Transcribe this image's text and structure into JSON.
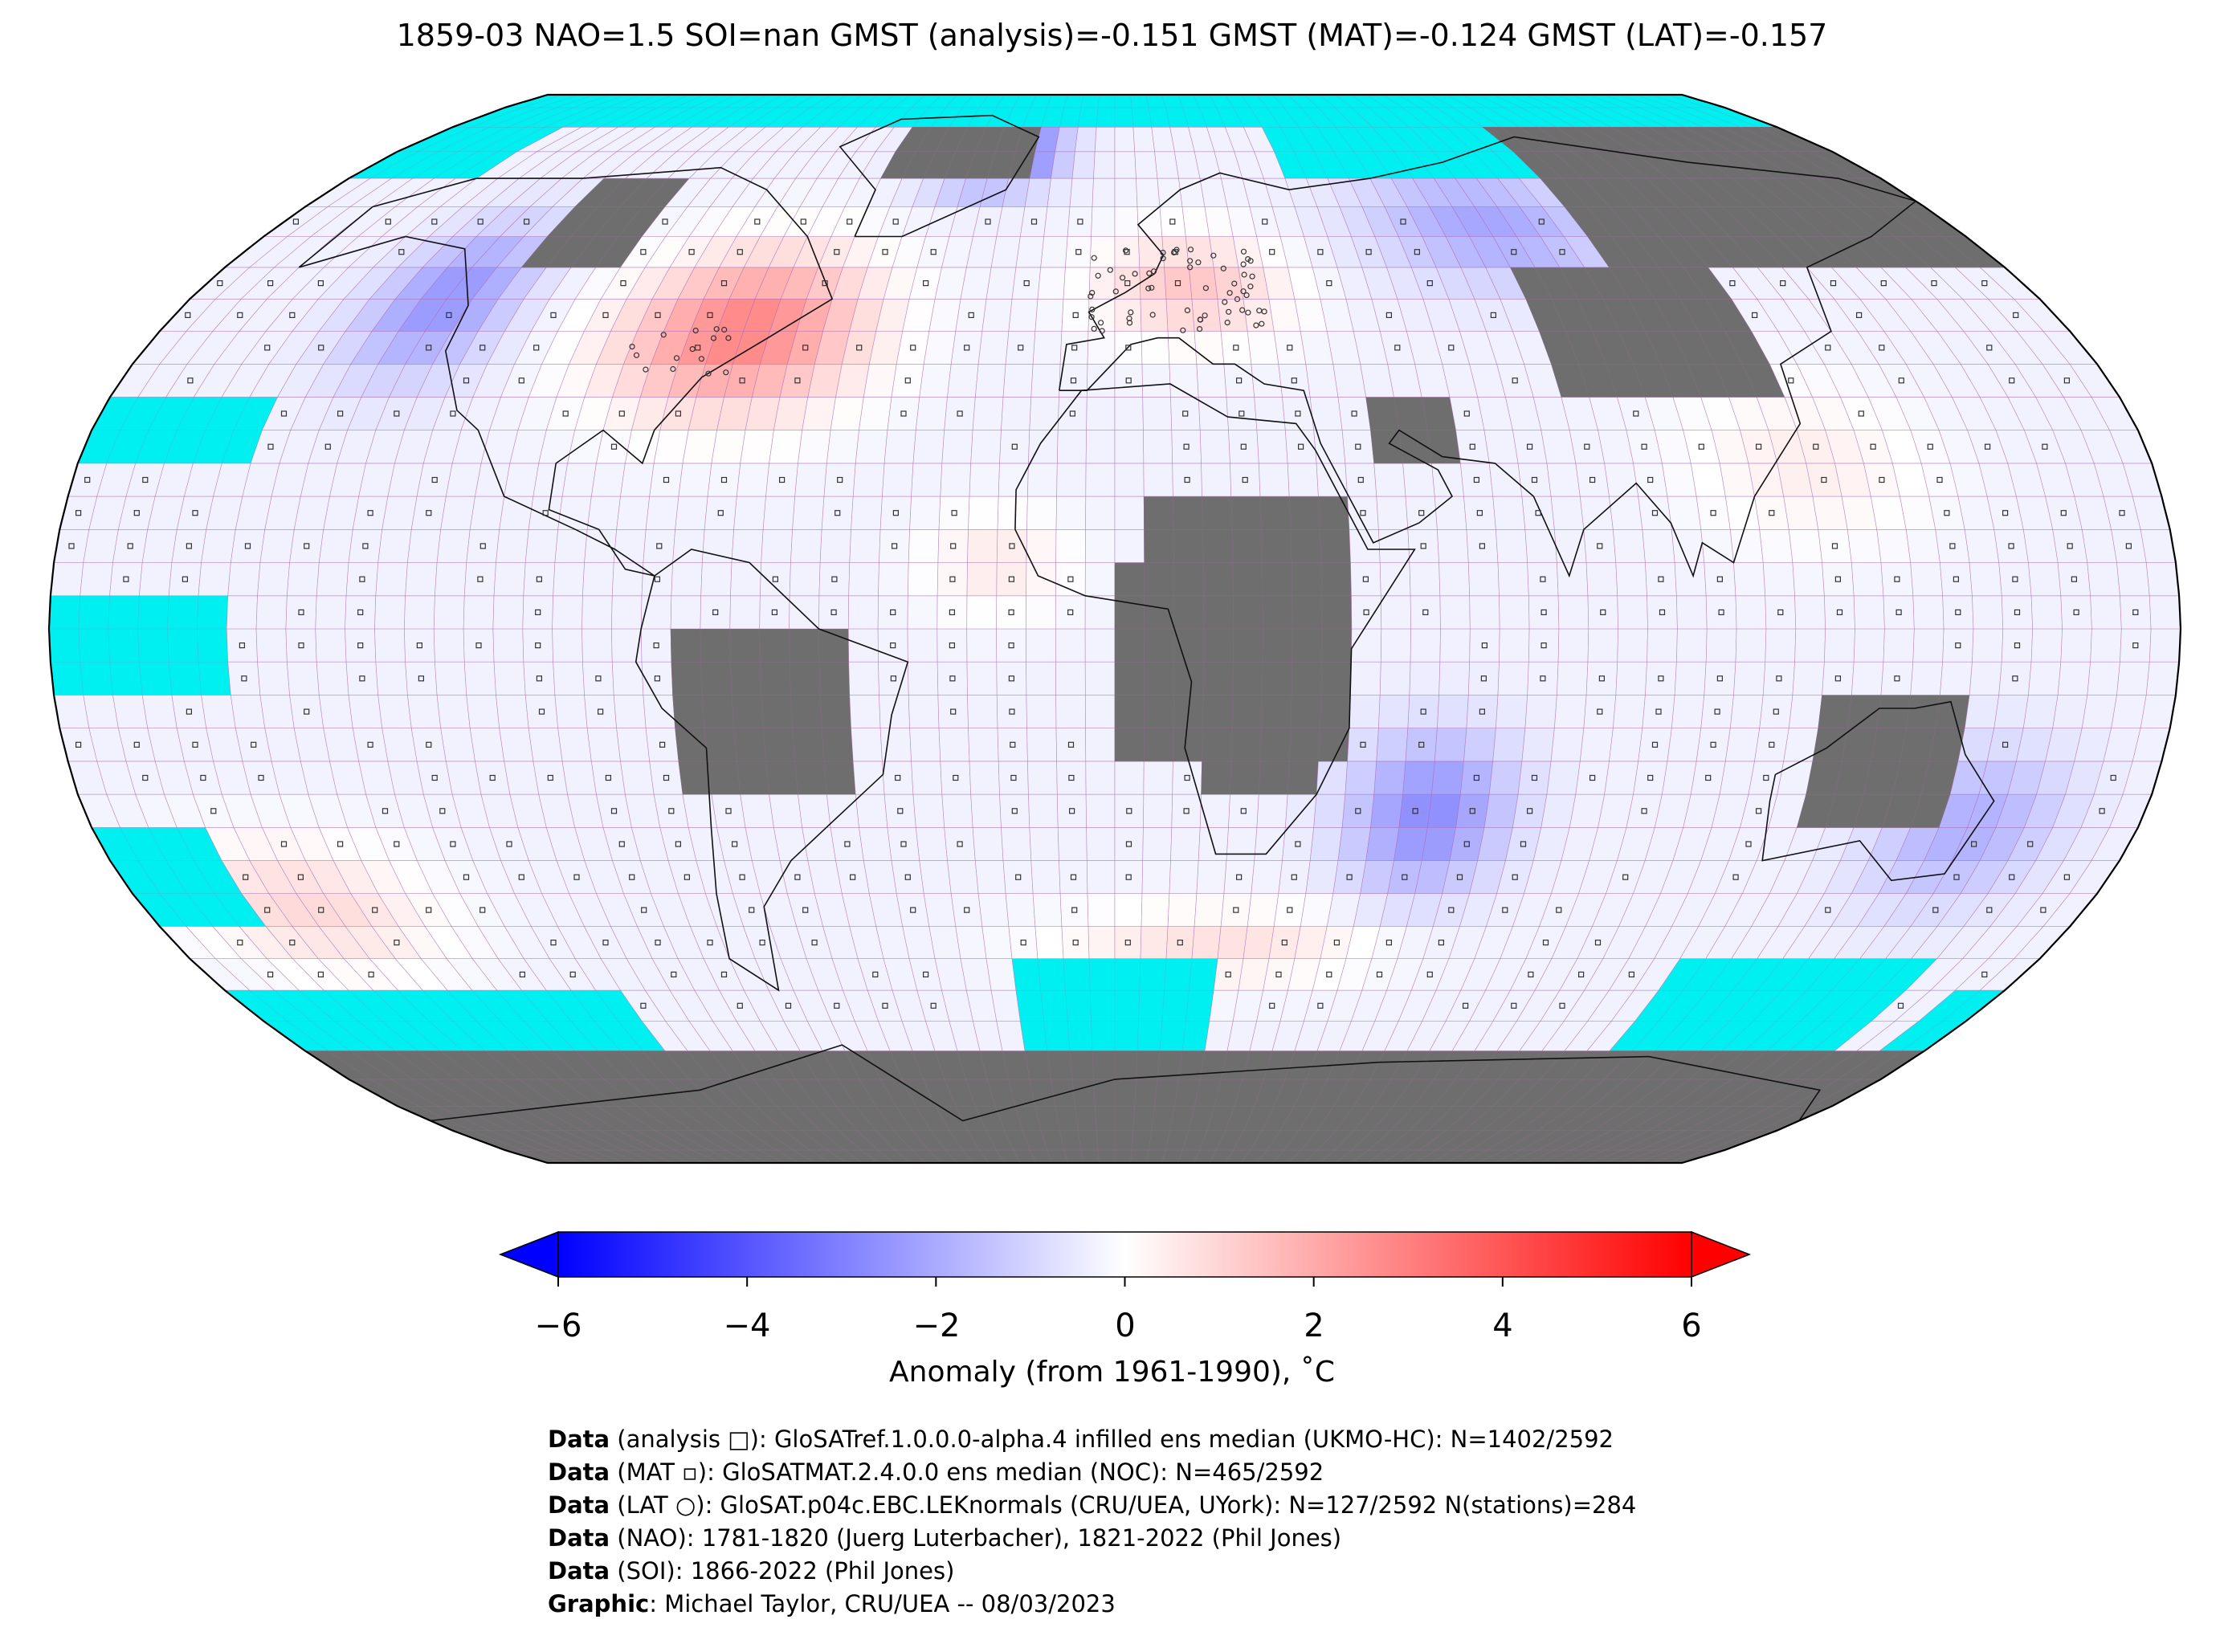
{
  "title": "1859-03 NAO=1.5 SOI=nan GMST (analysis)=-0.151 GMST (MAT)=-0.124 GMST (LAT)=-0.157",
  "colors": {
    "ocean_no_data": "#00f0f2",
    "land_no_data": "#6e6e6e",
    "cold": "#0000ff",
    "neutral": "#ffffff",
    "warm": "#ff0000",
    "grid": "#b06cb0"
  },
  "colorbar": {
    "min": -6,
    "max": 6,
    "ticks": [
      "−6",
      "−4",
      "−2",
      "0",
      "2",
      "4",
      "6"
    ],
    "label": "Anomaly (from 1961-1990), ˚C",
    "extend": "both"
  },
  "credits": [
    {
      "bold": "Data",
      "text": " (analysis □): GloSATref.1.0.0.0-alpha.4 infilled ens median (UKMO-HC): N=1402/2592"
    },
    {
      "bold": "Data",
      "text": " (MAT ▫): GloSATMAT.2.4.0.0 ens median (NOC): N=465/2592"
    },
    {
      "bold": "Data",
      "text": " (LAT ○): GloSAT.p04c.EBC.LEKnormals (CRU/UEA, UYork): N=127/2592 N(stations)=284"
    },
    {
      "bold": "Data",
      "text": " (NAO): 1781-1820 (Juerg Luterbacher), 1821-2022 (Phil Jones)"
    },
    {
      "bold": "Data",
      "text": " (SOI): 1866-2022 (Phil Jones)"
    },
    {
      "bold": "Graphic",
      "text": ": Michael Taylor, CRU/UEA -- 08/03/2023"
    }
  ],
  "map": {
    "projection": "Robinson",
    "grid_resolution": "5°",
    "regions_rgb": {
      "greenland_area": "#2a2aff",
      "north_atlantic_us": "#ff8a8a",
      "europe": "#ffb8b8",
      "siberia": "#c4c4ff",
      "pacific_nw": "#9c9cff",
      "s_indian_ocean": "#8c8cff",
      "s_pacific": "#ffcaca",
      "australia_e": "#a8a8ff"
    }
  }
}
